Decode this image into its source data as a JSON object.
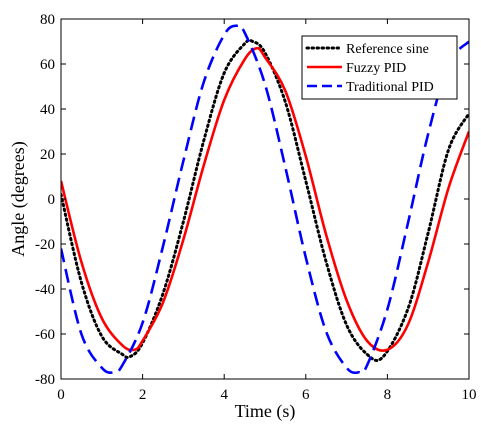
{
  "chart_data": {
    "type": "line",
    "xlabel": "Time (s)",
    "ylabel": "Angle (degrees)",
    "xlim": [
      0,
      10
    ],
    "ylim": [
      -80,
      80
    ],
    "xticks": [
      0,
      2,
      4,
      6,
      8,
      10
    ],
    "yticks": [
      -80,
      -60,
      -40,
      -20,
      0,
      20,
      40,
      60,
      80
    ],
    "xtick_labels": [
      "0",
      "2",
      "4",
      "6",
      "8",
      "10"
    ],
    "ytick_labels": [
      "-80",
      "-60",
      "-40",
      "-20",
      "0",
      "20",
      "40",
      "60",
      "80"
    ],
    "grid": false,
    "legend_position": "top-right",
    "series": [
      {
        "name": "Reference sine",
        "color": "#000000",
        "style": "dotted",
        "x": [
          0,
          0.5,
          1.0,
          1.5,
          1.7,
          2.0,
          2.5,
          3.0,
          3.5,
          4.0,
          4.5,
          4.7,
          5.0,
          5.5,
          6.0,
          6.5,
          7.0,
          7.5,
          7.9,
          8.5,
          9.0,
          9.5,
          10.0
        ],
        "y": [
          2,
          -37,
          -61,
          -69,
          -70,
          -64,
          -42,
          -10,
          26,
          56,
          69,
          70,
          65,
          43,
          8,
          -28,
          -56,
          -69,
          -70,
          -49,
          -15,
          22,
          38
        ]
      },
      {
        "name": "Fuzzy PID",
        "color": "#ff0000",
        "style": "solid",
        "x": [
          0,
          0.5,
          1.0,
          1.5,
          1.8,
          2.0,
          2.5,
          3.0,
          3.5,
          4.0,
          4.5,
          4.8,
          5.0,
          5.5,
          6.0,
          6.5,
          7.0,
          7.5,
          8.0,
          8.5,
          9.0,
          9.5,
          10.0
        ],
        "y": [
          8,
          -28,
          -53,
          -65,
          -67,
          -63,
          -46,
          -18,
          15,
          44,
          62,
          67,
          63,
          48,
          19,
          -16,
          -45,
          -63,
          -67,
          -56,
          -28,
          5,
          30
        ]
      },
      {
        "name": "Traditional PID",
        "color": "#0000ff",
        "style": "dashed",
        "x": [
          0,
          0.5,
          1.0,
          1.3,
          1.5,
          2.0,
          2.5,
          3.0,
          3.5,
          4.0,
          4.3,
          4.5,
          5.0,
          5.5,
          6.0,
          6.5,
          7.0,
          7.3,
          7.5,
          8.0,
          8.5,
          9.0,
          9.5,
          10.0
        ],
        "y": [
          -22,
          -60,
          -75,
          -77,
          -74,
          -55,
          -21,
          17,
          52,
          73,
          77,
          74,
          51,
          14,
          -26,
          -59,
          -75,
          -77,
          -74,
          -49,
          -11,
          29,
          60,
          70
        ]
      }
    ]
  }
}
